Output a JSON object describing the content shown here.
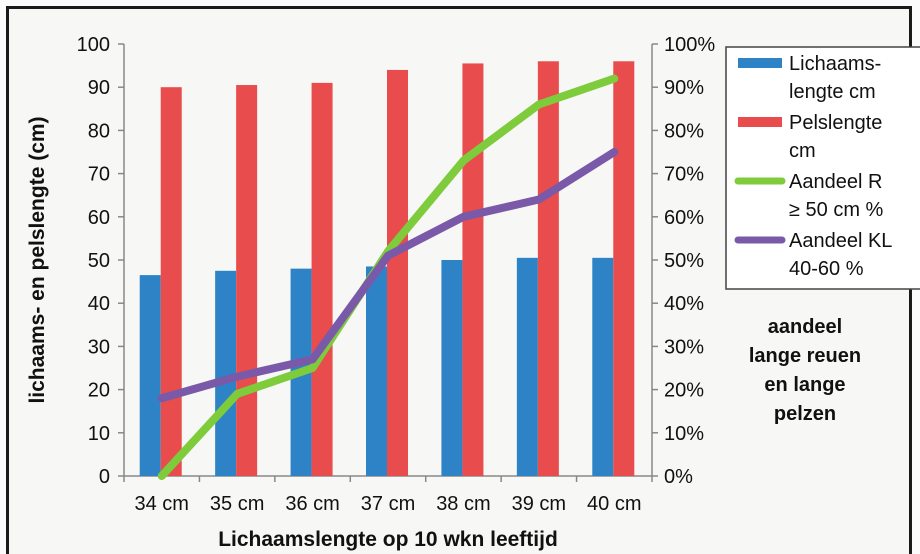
{
  "chart_data": {
    "type": "bar",
    "categories": [
      "34 cm",
      "35 cm",
      "36 cm",
      "37 cm",
      "38 cm",
      "39 cm",
      "40 cm"
    ],
    "xlabel": "Lichaamslengte op 10 wkn leeftijd",
    "ylabel": "lichaams- en pelslengte (cm)",
    "ylim": [
      0,
      100
    ],
    "yticks": [
      "0",
      "10",
      "20",
      "30",
      "40",
      "50",
      "60",
      "70",
      "80",
      "90",
      "100"
    ],
    "y2lim": [
      0,
      100
    ],
    "y2ticks": [
      "0%",
      "10%",
      "20%",
      "30%",
      "40%",
      "50%",
      "60%",
      "70%",
      "80%",
      "90%",
      "100%"
    ],
    "y2label": [
      "aandeel",
      "lange reuen",
      "en lange",
      "pelzen"
    ],
    "grid": false,
    "legend_position": "right",
    "series": [
      {
        "name": [
          "Lichaams-",
          "lengte cm"
        ],
        "kind": "bar",
        "axis": "left",
        "color": "#2d83c6",
        "values": [
          46.5,
          47.5,
          48,
          48.5,
          50,
          50.5,
          50.5
        ]
      },
      {
        "name": [
          "Pelslengte",
          "cm"
        ],
        "kind": "bar",
        "axis": "left",
        "color": "#e84c4c",
        "values": [
          90,
          90.5,
          91,
          94,
          95.5,
          96,
          96
        ]
      },
      {
        "name": [
          "Aandeel R",
          "≥ 50 cm %"
        ],
        "kind": "line",
        "axis": "right",
        "color": "#7ecb3c",
        "values": [
          0,
          19,
          25,
          52,
          73,
          86,
          92
        ]
      },
      {
        "name": [
          "Aandeel KL",
          "40-60 %"
        ],
        "kind": "line",
        "axis": "right",
        "color": "#7b59a9",
        "values": [
          18,
          23,
          27,
          51,
          60,
          64,
          75
        ]
      }
    ]
  }
}
